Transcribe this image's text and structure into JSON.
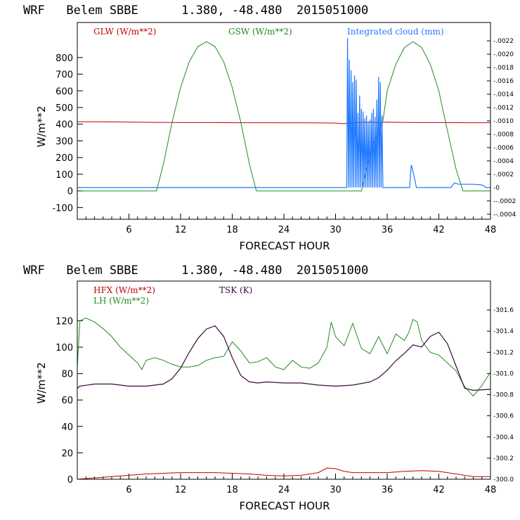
{
  "chart_data": [
    {
      "type": "line",
      "title": "WRF   Belem SBBE      1.380, -48.480  2015051000",
      "xlabel": "FORECAST HOUR",
      "ylabel": "W/m**2",
      "xlim": [
        0,
        48
      ],
      "ylim": [
        -170,
        1010
      ],
      "x_ticks": [
        "6",
        "12",
        "18",
        "24",
        "30",
        "36",
        "42",
        "48"
      ],
      "y_ticks": [
        "800",
        "700",
        "600",
        "500",
        "400",
        "300",
        "200",
        "100",
        "0",
        "-100"
      ],
      "right_axis": {
        "label_series": "Integrated cloud (mm)",
        "ylim": [
          -0.000475,
          0.002475
        ],
        "ticks": [
          ".0022",
          ".0020",
          ".0018",
          ".0016",
          ".0014",
          ".0012",
          ".0010",
          ".0008",
          ".0006",
          ".0004",
          ".0002",
          "0",
          "-.0002",
          "-.0004"
        ]
      },
      "series": [
        {
          "name": "GLW (W/m**2)",
          "color": "#c00000",
          "axis": "left",
          "x": [
            0,
            3,
            6,
            9,
            12,
            15,
            18,
            21,
            24,
            27,
            30,
            31,
            32,
            33,
            34,
            35,
            36,
            39,
            42,
            45,
            48
          ],
          "y": [
            415,
            414,
            413,
            411,
            410,
            410,
            409,
            409,
            408,
            408,
            407,
            403,
            408,
            411,
            413,
            410,
            412,
            410,
            410,
            409,
            409
          ]
        },
        {
          "name": "GSW (W/m**2)",
          "color": "#228b22",
          "axis": "left",
          "x": [
            0,
            9.2,
            10,
            11,
            12,
            13,
            14,
            15,
            16,
            17,
            18,
            19,
            20,
            20.8,
            24,
            30,
            33,
            33.5,
            34,
            35,
            35.5,
            36,
            37,
            38,
            39,
            40,
            41,
            42,
            43,
            44,
            44.8,
            48
          ],
          "y": [
            0,
            0,
            160,
            410,
            620,
            775,
            865,
            895,
            865,
            775,
            620,
            410,
            160,
            0,
            0,
            0,
            0,
            110,
            220,
            360,
            420,
            600,
            760,
            860,
            895,
            860,
            760,
            600,
            360,
            130,
            0,
            0
          ]
        },
        {
          "name": "Integrated cloud (mm)",
          "color": "#1e78ff",
          "axis": "right",
          "x": [
            0,
            31.3,
            31.4,
            31.5,
            31.6,
            31.7,
            31.8,
            31.9,
            32.0,
            32.1,
            32.2,
            32.3,
            32.4,
            32.5,
            32.6,
            32.7,
            32.8,
            32.9,
            33.0,
            33.1,
            33.2,
            33.3,
            33.4,
            33.5,
            33.6,
            33.7,
            33.8,
            33.9,
            34.0,
            34.1,
            34.2,
            34.3,
            34.4,
            34.5,
            34.6,
            34.7,
            34.8,
            34.9,
            35.0,
            35.1,
            35.2,
            35.3,
            35.4,
            35.5,
            35.6,
            38.6,
            38.8,
            39.0,
            39.2,
            39.4,
            43.4,
            43.8,
            44.3,
            45.0,
            46.0,
            47.0,
            47.5,
            48
          ],
          "y": [
            0,
            0,
            0.00224,
            0,
            0.00192,
            0,
            0.00176,
            0,
            0.00158,
            0,
            0.00168,
            0,
            0.00162,
            0,
            0.00112,
            0,
            0.00138,
            0,
            0.00118,
            0,
            0.00114,
            0,
            0.00104,
            0,
            0.00108,
            0,
            0.00098,
            0,
            0.00102,
            0,
            0.00112,
            0,
            0.00118,
            0,
            0.00106,
            0,
            0.00132,
            0,
            0.00166,
            0,
            0.00158,
            0,
            0.00108,
            0,
            0,
            0,
            0.00034,
            0.00024,
            0.00012,
            0,
            0,
            7e-05,
            5e-05,
            5e-05,
            5e-05,
            4e-05,
            0,
            0
          ]
        }
      ]
    },
    {
      "type": "line",
      "title": "WRF   Belem SBBE      1.380, -48.480  2015051000",
      "xlabel": "FORECAST HOUR",
      "ylabel": "W/m**2",
      "xlim": [
        0,
        48
      ],
      "ylim": [
        0,
        150
      ],
      "x_ticks": [
        "6",
        "12",
        "18",
        "24",
        "30",
        "36",
        "42",
        "48"
      ],
      "y_ticks": [
        "120",
        "100",
        "80",
        "60",
        "40",
        "20",
        "0"
      ],
      "right_axis": {
        "label_series": "TSK (K)",
        "ylim": [
          300.0,
          301.873
        ],
        "ticks": [
          "301.6",
          "301.4",
          "301.2",
          "301.0",
          "300.8",
          "300.6",
          "300.4",
          "300.2",
          "300.0"
        ]
      },
      "series": [
        {
          "name": "HFX (W/m**2)",
          "color": "#c00000",
          "axis": "left",
          "x": [
            0,
            2,
            4,
            6,
            8,
            10,
            12,
            14,
            16,
            18,
            20,
            22,
            24,
            26,
            28,
            29,
            30,
            31,
            32,
            34,
            36,
            38,
            40,
            42,
            44,
            46,
            48
          ],
          "y": [
            0,
            1,
            2,
            3,
            4,
            4.5,
            5,
            5,
            5,
            4.5,
            4,
            3,
            2.5,
            3,
            5,
            8.5,
            8,
            6,
            5,
            5,
            5,
            6,
            6.5,
            6,
            4,
            2,
            2
          ]
        },
        {
          "name": "LH (W/m**2)",
          "color": "#228b22",
          "axis": "left",
          "x": [
            0,
            0.3,
            1,
            2,
            3,
            4,
            5,
            6,
            7,
            7.5,
            8,
            9,
            10,
            11,
            12,
            13,
            14,
            15,
            16,
            17,
            18,
            19,
            20,
            21,
            22,
            23,
            24,
            25,
            26,
            27,
            28,
            29,
            29.5,
            30,
            31,
            32,
            33,
            34,
            35,
            36,
            37,
            38,
            38.5,
            39,
            39.5,
            40,
            41,
            42,
            43,
            44,
            45,
            46,
            47,
            48
          ],
          "y": [
            85,
            120,
            122,
            119,
            114,
            108,
            100,
            94,
            88,
            83,
            90,
            92,
            90,
            87,
            85,
            85,
            86,
            90,
            92,
            93,
            104,
            97,
            88,
            89,
            92,
            85,
            83,
            90,
            85,
            84,
            88,
            100,
            119,
            108,
            101,
            118,
            99,
            95,
            108,
            95,
            110,
            105,
            111,
            121,
            119,
            105,
            96,
            94,
            88,
            82,
            70,
            63,
            71,
            81
          ]
        },
        {
          "name": "TSK (K)",
          "color": "#3c0a3c",
          "axis": "right",
          "x": [
            0,
            0.3,
            2,
            4,
            6,
            8,
            10,
            11,
            12,
            13,
            14,
            15,
            16,
            17,
            18,
            19,
            20,
            21,
            22,
            24,
            26,
            28,
            30,
            32,
            34,
            35,
            36,
            37,
            38,
            39,
            40,
            41,
            42,
            43,
            44,
            45,
            46,
            48
          ],
          "y": [
            300.86,
            300.88,
            300.9,
            300.9,
            300.88,
            300.88,
            300.9,
            300.95,
            301.05,
            301.2,
            301.33,
            301.42,
            301.45,
            301.35,
            301.15,
            300.98,
            300.92,
            300.91,
            300.92,
            300.91,
            300.91,
            300.89,
            300.88,
            300.89,
            300.92,
            300.96,
            301.03,
            301.12,
            301.19,
            301.27,
            301.25,
            301.35,
            301.39,
            301.28,
            301.07,
            300.86,
            300.84,
            300.85
          ]
        }
      ]
    }
  ]
}
